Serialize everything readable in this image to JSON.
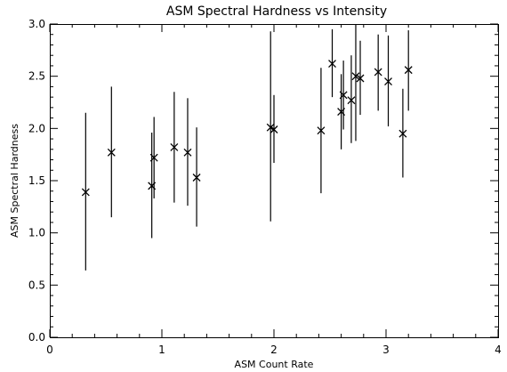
{
  "chart_data": {
    "type": "scatter",
    "title": "ASM Spectral Hardness vs Intensity",
    "xlabel": "ASM Count Rate",
    "ylabel": "ASM Spectral Hardness",
    "xlim": [
      0,
      4
    ],
    "ylim": [
      0,
      3
    ],
    "xticks": [
      0,
      1,
      2,
      3,
      4
    ],
    "xtick_labels": [
      "0",
      "1",
      "2",
      "3",
      "4"
    ],
    "yticks": [
      0,
      0.5,
      1.0,
      1.5,
      2.0,
      2.5,
      3.0
    ],
    "ytick_labels": [
      "0.0",
      "0.5",
      "1.0",
      "1.5",
      "2.0",
      "2.5",
      "3.0"
    ],
    "marker": "x",
    "grid": false,
    "points": [
      {
        "x": 0.32,
        "y": 1.39,
        "ylow": 0.64,
        "yhigh": 2.15
      },
      {
        "x": 0.55,
        "y": 1.77,
        "ylow": 1.15,
        "yhigh": 2.4
      },
      {
        "x": 0.91,
        "y": 1.45,
        "ylow": 0.95,
        "yhigh": 1.96
      },
      {
        "x": 0.93,
        "y": 1.72,
        "ylow": 1.33,
        "yhigh": 2.11
      },
      {
        "x": 1.11,
        "y": 1.82,
        "ylow": 1.29,
        "yhigh": 2.35
      },
      {
        "x": 1.23,
        "y": 1.77,
        "ylow": 1.26,
        "yhigh": 2.29
      },
      {
        "x": 1.31,
        "y": 1.53,
        "ylow": 1.06,
        "yhigh": 2.01
      },
      {
        "x": 1.97,
        "y": 2.01,
        "ylow": 1.11,
        "yhigh": 2.93
      },
      {
        "x": 2.0,
        "y": 1.99,
        "ylow": 1.67,
        "yhigh": 2.32
      },
      {
        "x": 2.42,
        "y": 1.98,
        "ylow": 1.38,
        "yhigh": 2.58
      },
      {
        "x": 2.52,
        "y": 2.62,
        "ylow": 2.3,
        "yhigh": 2.95
      },
      {
        "x": 2.6,
        "y": 2.16,
        "ylow": 1.8,
        "yhigh": 2.52
      },
      {
        "x": 2.62,
        "y": 2.32,
        "ylow": 1.99,
        "yhigh": 2.65
      },
      {
        "x": 2.69,
        "y": 2.27,
        "ylow": 1.86,
        "yhigh": 2.7
      },
      {
        "x": 2.73,
        "y": 2.5,
        "ylow": 1.88,
        "yhigh": 3.0
      },
      {
        "x": 2.77,
        "y": 2.48,
        "ylow": 2.13,
        "yhigh": 2.84
      },
      {
        "x": 2.93,
        "y": 2.54,
        "ylow": 2.17,
        "yhigh": 2.9
      },
      {
        "x": 3.02,
        "y": 2.45,
        "ylow": 2.02,
        "yhigh": 2.89
      },
      {
        "x": 3.15,
        "y": 1.95,
        "ylow": 1.53,
        "yhigh": 2.38
      },
      {
        "x": 3.2,
        "y": 2.56,
        "ylow": 2.17,
        "yhigh": 2.94
      }
    ]
  }
}
